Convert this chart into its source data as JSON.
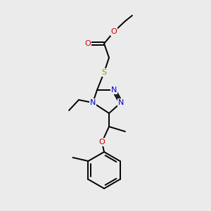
{
  "bg_color": "#ebebeb",
  "atom_colors": {
    "C": "#000000",
    "N": "#0000cc",
    "O": "#cc0000",
    "S": "#999900"
  },
  "figsize": [
    3.0,
    3.0
  ],
  "dpi": 100
}
